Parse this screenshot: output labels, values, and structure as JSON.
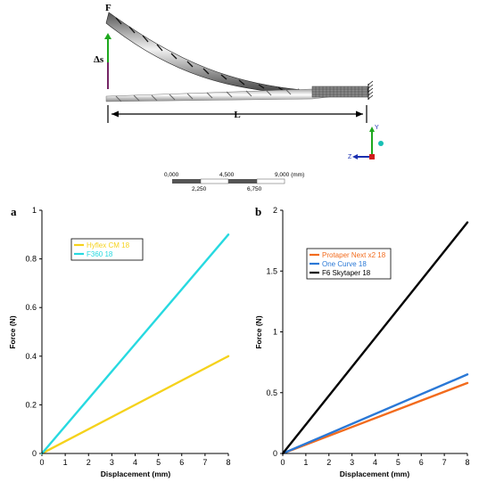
{
  "diagram": {
    "force_label": "F",
    "deflection_label": "Δs",
    "length_label": "L",
    "scale_labels_top": [
      "0,000",
      "4,500",
      "9,000 (mm)"
    ],
    "scale_labels_bottom": [
      "2,250",
      "6,750"
    ],
    "triad_labels": {
      "y": "Y",
      "z": "Z"
    },
    "colors": {
      "y_axis": "#1ea81e",
      "z_axis": "#1a2fb0",
      "x_axis": "#d01c1c",
      "origin": "#18c0b4"
    }
  },
  "chart_data": [
    {
      "type": "line",
      "panel_label": "a",
      "xlabel": "Displacement (mm)",
      "ylabel": "Force (N)",
      "xlim": [
        0,
        8
      ],
      "ylim": [
        0,
        1
      ],
      "xticks": [
        0,
        1,
        2,
        3,
        4,
        5,
        6,
        7,
        8
      ],
      "yticks": [
        0,
        0.2,
        0.4,
        0.6,
        0.8,
        1
      ],
      "ytick_labels": [
        "0",
        "0.2",
        "0.4",
        "0.6",
        "0.8",
        "1"
      ],
      "grid": false,
      "legend_position": "top-left",
      "series": [
        {
          "name": "Hyflex CM 18",
          "color": "#f5d21c",
          "x": [
            0,
            8
          ],
          "y": [
            0,
            0.4
          ]
        },
        {
          "name": "F360 18",
          "color": "#27d9e0",
          "x": [
            0,
            8
          ],
          "y": [
            0,
            0.9
          ]
        }
      ]
    },
    {
      "type": "line",
      "panel_label": "b",
      "xlabel": "Displacement (mm)",
      "ylabel": "Force (N)",
      "xlim": [
        0,
        8
      ],
      "ylim": [
        0,
        2
      ],
      "xticks": [
        0,
        1,
        2,
        3,
        4,
        5,
        6,
        7,
        8
      ],
      "yticks": [
        0,
        0.5,
        1,
        1.5,
        2
      ],
      "ytick_labels": [
        "0",
        "0.5",
        "1",
        "1.5",
        "2"
      ],
      "grid": false,
      "legend_position": "top-left",
      "series": [
        {
          "name": "Protaper Next x2 18",
          "color": "#f26b1d",
          "x": [
            0,
            8
          ],
          "y": [
            0,
            0.58
          ]
        },
        {
          "name": "One Curve 18",
          "color": "#2a78d6",
          "x": [
            0,
            8
          ],
          "y": [
            0,
            0.65
          ]
        },
        {
          "name": "F6 Skytaper 18",
          "color": "#000000",
          "x": [
            0,
            8
          ],
          "y": [
            0,
            1.9
          ]
        }
      ]
    }
  ]
}
